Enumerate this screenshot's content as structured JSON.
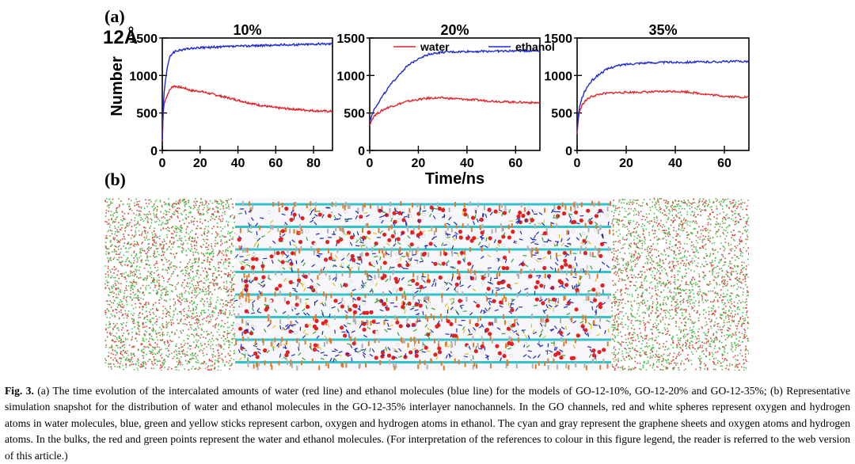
{
  "figure": {
    "label_a": "(a)",
    "label_b": "(b)",
    "size_label": "12Å",
    "caption_label": "Fig. 3.",
    "caption_text": "(a) The time evolution of the intercalated amounts of water (red line) and ethanol molecules (blue line) for the models of GO-12-10%, GO-12-20% and GO-12-35%; (b) Representative simulation snapshot for the distribution of water and ethanol molecules in the GO-12-35% interlayer nanochannels. In the GO channels, red and white spheres represent oxygen and hydrogen atoms in water molecules, blue, green and yellow sticks represent carbon, oxygen and hydrogen atoms in ethanol. The cyan and gray represent the graphene sheets and oxygen atoms and hydrogen atoms. In the bulks, the red and green points represent the water and ethanol molecules. (For interpretation of the references to colour in this figure legend, the reader is referred to the web version of this article.)"
  },
  "colors": {
    "water": "#e0242a",
    "ethanol": "#1f2bd0",
    "graphene": "#33c3c8",
    "bulk_water": "#d8443a",
    "bulk_ethanol": "#4cbf4c"
  },
  "chart_data": [
    {
      "type": "line",
      "title": "10%",
      "ylabel": "Number",
      "xlabel": "",
      "xlim": [
        0,
        90
      ],
      "ylim": [
        0,
        1500
      ],
      "xticks": [
        0,
        20,
        40,
        60,
        80
      ],
      "yticks": [
        0,
        500,
        1000,
        1500
      ],
      "legend": null,
      "series": [
        {
          "name": "water",
          "color": "#e0242a",
          "x": [
            0,
            0.5,
            1,
            2,
            3,
            4,
            5,
            6,
            8,
            10,
            12,
            15,
            20,
            25,
            30,
            35,
            40,
            45,
            50,
            55,
            60,
            65,
            70,
            75,
            80,
            85,
            90
          ],
          "y": [
            120,
            500,
            620,
            700,
            760,
            810,
            840,
            860,
            850,
            840,
            830,
            800,
            790,
            760,
            730,
            700,
            670,
            640,
            610,
            590,
            570,
            560,
            550,
            540,
            530,
            525,
            520
          ]
        },
        {
          "name": "ethanol",
          "color": "#1f2bd0",
          "x": [
            0,
            0.5,
            1,
            2,
            3,
            4,
            5,
            6,
            8,
            10,
            12,
            15,
            20,
            25,
            30,
            35,
            40,
            45,
            50,
            55,
            60,
            65,
            70,
            75,
            80,
            85,
            90
          ],
          "y": [
            150,
            560,
            780,
            1000,
            1150,
            1240,
            1290,
            1310,
            1330,
            1340,
            1350,
            1360,
            1370,
            1375,
            1380,
            1385,
            1390,
            1395,
            1400,
            1400,
            1405,
            1410,
            1410,
            1415,
            1420,
            1420,
            1425
          ]
        }
      ]
    },
    {
      "type": "line",
      "title": "20%",
      "ylabel": "",
      "xlabel": "Time/ns",
      "xlim": [
        0,
        70
      ],
      "ylim": [
        0,
        1500
      ],
      "xticks": [
        0,
        20,
        40,
        60
      ],
      "yticks": [
        0,
        500,
        1000,
        1500
      ],
      "legend": "top",
      "series": [
        {
          "name": "water",
          "color": "#e0242a",
          "x": [
            0,
            1,
            2,
            4,
            6,
            8,
            10,
            12,
            15,
            20,
            25,
            30,
            35,
            40,
            45,
            50,
            55,
            60,
            65,
            70
          ],
          "y": [
            330,
            420,
            470,
            510,
            550,
            580,
            600,
            620,
            650,
            680,
            700,
            700,
            690,
            680,
            670,
            660,
            650,
            645,
            640,
            635
          ]
        },
        {
          "name": "ethanol",
          "color": "#1f2bd0",
          "x": [
            0,
            1,
            2,
            4,
            6,
            8,
            10,
            12,
            15,
            20,
            25,
            30,
            35,
            40,
            45,
            50,
            55,
            60,
            65,
            70
          ],
          "y": [
            380,
            480,
            560,
            660,
            760,
            850,
            930,
            1010,
            1110,
            1230,
            1290,
            1310,
            1315,
            1320,
            1322,
            1325,
            1325,
            1328,
            1330,
            1330
          ]
        }
      ]
    },
    {
      "type": "line",
      "title": "35%",
      "ylabel": "",
      "xlabel": "",
      "xlim": [
        0,
        70
      ],
      "ylim": [
        0,
        1500
      ],
      "xticks": [
        0,
        20,
        40,
        60
      ],
      "yticks": [
        0,
        500,
        1000,
        1500
      ],
      "legend": null,
      "series": [
        {
          "name": "water",
          "color": "#e0242a",
          "x": [
            0,
            0.5,
            1,
            2,
            3,
            4,
            5,
            6,
            8,
            10,
            12,
            15,
            20,
            25,
            30,
            35,
            40,
            45,
            50,
            55,
            60,
            65,
            70
          ],
          "y": [
            220,
            420,
            520,
            600,
            650,
            680,
            700,
            720,
            740,
            755,
            760,
            770,
            775,
            778,
            780,
            785,
            790,
            780,
            760,
            740,
            725,
            715,
            710
          ]
        },
        {
          "name": "ethanol",
          "color": "#1f2bd0",
          "x": [
            0,
            0.5,
            1,
            2,
            3,
            4,
            5,
            6,
            8,
            10,
            12,
            15,
            20,
            25,
            30,
            35,
            40,
            45,
            50,
            55,
            60,
            65,
            70
          ],
          "y": [
            260,
            460,
            580,
            700,
            780,
            840,
            890,
            930,
            990,
            1040,
            1080,
            1120,
            1150,
            1165,
            1170,
            1175,
            1175,
            1178,
            1180,
            1182,
            1185,
            1188,
            1190
          ]
        }
      ]
    }
  ]
}
